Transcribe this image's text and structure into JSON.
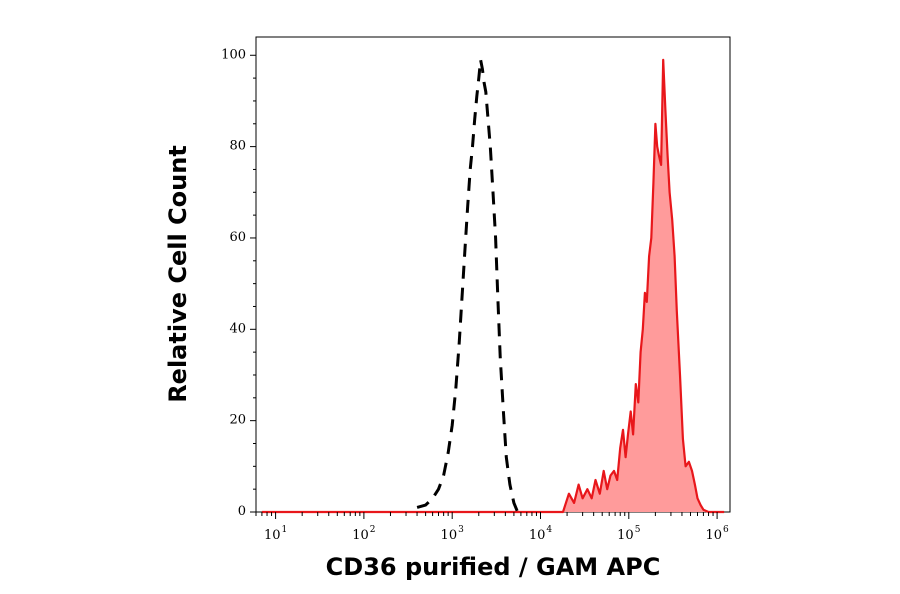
{
  "chart_data": {
    "type": "area",
    "title": "",
    "xlabel": "CD36 purified / GAM APC",
    "ylabel": "Relative Cell Count",
    "x_scale": "log",
    "xlim": [
      6,
      1400000
    ],
    "ylim": [
      0,
      104
    ],
    "x_ticks": [
      {
        "base": "10",
        "exp": "1",
        "value": 10
      },
      {
        "base": "10",
        "exp": "2",
        "value": 100
      },
      {
        "base": "10",
        "exp": "3",
        "value": 1000
      },
      {
        "base": "10",
        "exp": "4",
        "value": 10000
      },
      {
        "base": "10",
        "exp": "5",
        "value": 100000
      },
      {
        "base": "10",
        "exp": "6",
        "value": 1000000
      }
    ],
    "y_ticks": [
      0,
      20,
      40,
      60,
      80,
      100
    ],
    "grid": false,
    "series": [
      {
        "role": "control",
        "style": "dashed",
        "color": "#000000",
        "fill": "none",
        "x": [
          400,
          500,
          600,
          700,
          800,
          900,
          1000,
          1100,
          1200,
          1300,
          1400,
          1500,
          1600,
          1700,
          1800,
          1900,
          2000,
          2100,
          2200,
          2300,
          2400,
          2500,
          2700,
          2900,
          3100,
          3300,
          3500,
          3800,
          4100,
          4500,
          5000,
          5500
        ],
        "values": [
          1,
          1.5,
          3,
          5,
          8,
          13,
          19,
          27,
          37,
          48,
          58,
          67,
          75,
          80,
          86,
          91,
          95,
          99,
          97,
          94,
          92,
          88,
          80,
          70,
          60,
          46,
          34,
          22,
          12,
          6,
          2,
          0
        ]
      },
      {
        "role": "stained",
        "style": "solid",
        "color": "#e8171b",
        "fill": "#ff9b9b",
        "x": [
          7,
          18000,
          21000,
          24000,
          27000,
          30000,
          34000,
          38000,
          42000,
          47000,
          52000,
          57000,
          62000,
          68000,
          74000,
          80000,
          86000,
          92000,
          98000,
          105000,
          112000,
          120000,
          128000,
          136000,
          144000,
          152000,
          160000,
          170000,
          180000,
          190000,
          200000,
          210000,
          220000,
          232000,
          245000,
          260000,
          275000,
          290000,
          310000,
          330000,
          350000,
          380000,
          410000,
          440000,
          480000,
          520000,
          560000,
          600000,
          650000,
          700000,
          800000,
          1200000
        ],
        "values": [
          0,
          0,
          4,
          2,
          6,
          3,
          5,
          3,
          7,
          4,
          9,
          5,
          8,
          9,
          7,
          14,
          18,
          12,
          17,
          22,
          17,
          28,
          24,
          35,
          40,
          48,
          46,
          56,
          60,
          72,
          85,
          80,
          78,
          76,
          99,
          88,
          78,
          70,
          64,
          56,
          44,
          30,
          16,
          10,
          11,
          9,
          6,
          3,
          1.5,
          0.5,
          0,
          0
        ]
      }
    ]
  }
}
